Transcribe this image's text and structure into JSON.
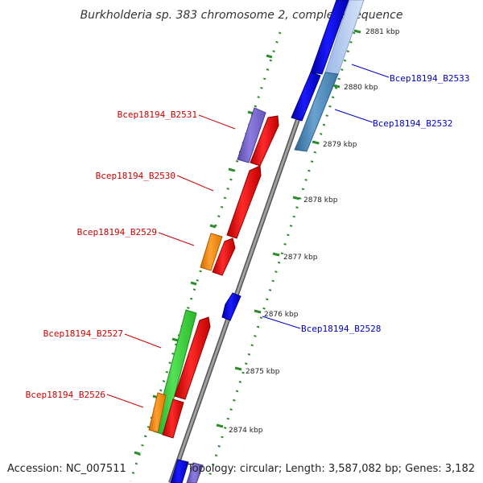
{
  "title": "Burkholderia sp. 383 chromosome 2, complete sequence",
  "footer": {
    "accession": "Accession: NC_007511",
    "summary": "Topology: circular; Length: 3,587,082 bp; Genes: 3,182"
  },
  "colors": {
    "backbone": "#8a8a8a",
    "tick": "#2e8b2e",
    "forward_label": "#cc0000",
    "reverse_label": "#0000cc",
    "red": "#ff0000",
    "blue": "#0000ff",
    "steelblue": "#4682b4",
    "purple": "#7b68cc",
    "orange": "#ff8c00",
    "green": "#33cc33"
  },
  "ticks": [
    {
      "label": "2881 kbp",
      "kbp": 2881
    },
    {
      "label": "2880 kbp",
      "kbp": 2880
    },
    {
      "label": "2879 kbp",
      "kbp": 2879
    },
    {
      "label": "2878 kbp",
      "kbp": 2878
    },
    {
      "label": "2877 kbp",
      "kbp": 2877
    },
    {
      "label": "2876 kbp",
      "kbp": 2876
    },
    {
      "label": "2875 kbp",
      "kbp": 2875
    },
    {
      "label": "2874 kbp",
      "kbp": 2874
    }
  ],
  "genes": [
    {
      "name": "Bcep18194_B2533",
      "strand": "reverse",
      "color": "steelblue",
      "labeled": true
    },
    {
      "name": "Bcep18194_B2532",
      "strand": "reverse",
      "color": "blue",
      "labeled": true
    },
    {
      "name": "Bcep18194_B2531",
      "strand": "forward",
      "color": "purple",
      "labeled": true
    },
    {
      "name": "Bcep18194_B2530",
      "strand": "forward",
      "color": "red",
      "labeled": true
    },
    {
      "name": "Bcep18194_B2529",
      "strand": "forward",
      "color": "orange",
      "labeled": true
    },
    {
      "name": "Bcep18194_B2528",
      "strand": "reverse",
      "color": "blue",
      "labeled": true
    },
    {
      "name": "Bcep18194_B2527",
      "strand": "forward",
      "color": "green",
      "labeled": true
    },
    {
      "name": "Bcep18194_B2526",
      "strand": "forward",
      "color": "orange",
      "labeled": true
    }
  ]
}
